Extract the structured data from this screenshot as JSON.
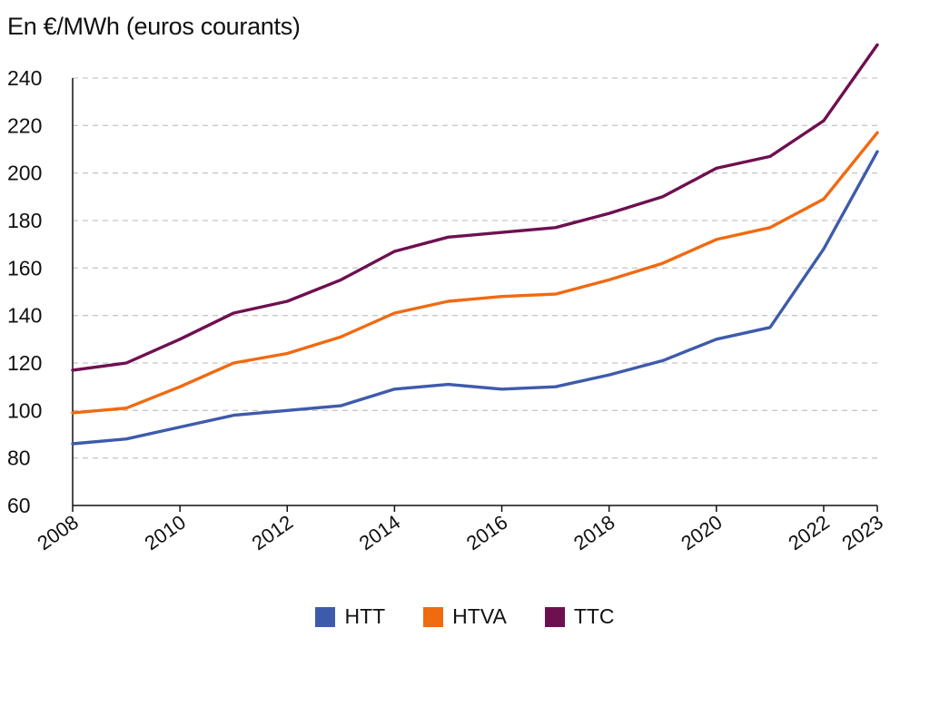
{
  "subtitle": "En €/MWh (euros courants)",
  "chart_data": {
    "type": "line",
    "title": "",
    "xlabel": "",
    "ylabel": "",
    "x": [
      2008,
      2009,
      2010,
      2011,
      2012,
      2013,
      2014,
      2015,
      2016,
      2017,
      2018,
      2019,
      2020,
      2021,
      2022,
      2023
    ],
    "x_tick_labels": [
      "2008",
      "2010",
      "2012",
      "2014",
      "2016",
      "2018",
      "2020",
      "2022",
      "2023"
    ],
    "y_tick_labels": [
      "240",
      "220",
      "200",
      "180",
      "160",
      "140",
      "120",
      "100",
      "80",
      "60"
    ],
    "ylim": [
      60,
      240
    ],
    "grid": "horizontal-dashed",
    "legend_position": "bottom",
    "series": [
      {
        "name": "HTT",
        "color": "#3e5bab",
        "values": [
          86,
          88,
          93,
          98,
          100,
          102,
          109,
          111,
          109,
          110,
          115,
          121,
          130,
          135,
          168,
          209
        ]
      },
      {
        "name": "HTVA",
        "color": "#f06a10",
        "values": [
          99,
          101,
          110,
          120,
          124,
          131,
          141,
          146,
          148,
          149,
          155,
          162,
          172,
          177,
          189,
          217
        ]
      },
      {
        "name": "TTC",
        "color": "#6e1050",
        "values": [
          117,
          120,
          130,
          141,
          146,
          155,
          167,
          173,
          175,
          177,
          183,
          190,
          202,
          207,
          222,
          254
        ]
      }
    ]
  }
}
